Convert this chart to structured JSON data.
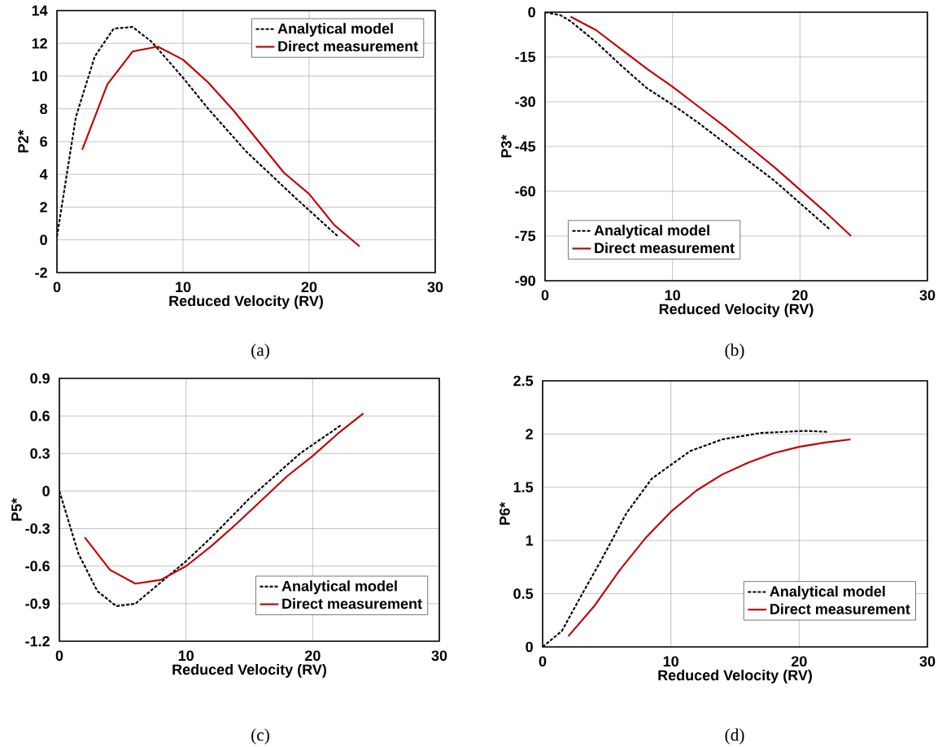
{
  "chart_data": [
    {
      "type": "line",
      "xlabel": "Reduced Velocity (RV)",
      "ylabel": "P2*",
      "annotations": [
        "(a)"
      ],
      "xlim": [
        0,
        30
      ],
      "xticks": [
        0,
        10,
        20,
        30
      ],
      "ylim": [
        -2,
        14
      ],
      "yticks": [
        -2,
        0,
        2,
        4,
        6,
        8,
        10,
        12,
        14
      ],
      "grid": true,
      "legend": "top right",
      "series": [
        {
          "name": "Analytical model",
          "color": "#000000",
          "line_style": "dashed",
          "x": [
            0,
            1.5,
            3,
            4.5,
            6,
            7.5,
            10,
            12,
            15,
            19,
            22.3
          ],
          "values": [
            0.2,
            7.5,
            11.2,
            12.9,
            13.0,
            12.1,
            9.9,
            8.0,
            5.4,
            2.5,
            0.2
          ]
        },
        {
          "name": "Direct measurement",
          "color": "#c00000",
          "line_style": "solid",
          "x": [
            2,
            4,
            6,
            8,
            10,
            12,
            14,
            16,
            18,
            20,
            22,
            24
          ],
          "values": [
            5.5,
            9.5,
            11.5,
            11.8,
            11.0,
            9.6,
            7.9,
            6.0,
            4.1,
            2.8,
            0.9,
            -0.4
          ]
        }
      ]
    },
    {
      "type": "line",
      "xlabel": "Reduced Velocity (RV)",
      "ylabel": "P3*",
      "annotations": [
        "(b)"
      ],
      "xlim": [
        0,
        30
      ],
      "xticks": [
        0,
        10,
        20,
        30
      ],
      "ylim": [
        -90,
        0
      ],
      "yticks": [
        -90,
        -75,
        -60,
        -45,
        -30,
        -15,
        0
      ],
      "grid": true,
      "legend": "bottom left",
      "series": [
        {
          "name": "Analytical model",
          "color": "#000000",
          "line_style": "dashed",
          "x": [
            0,
            1.2,
            2,
            4,
            6,
            8,
            10,
            12,
            14,
            16,
            18,
            20,
            22.4
          ],
          "values": [
            0,
            -1,
            -3,
            -10,
            -18,
            -25.5,
            -31,
            -37,
            -43.5,
            -50,
            -56.5,
            -64,
            -73
          ]
        },
        {
          "name": "Direct measurement",
          "color": "#c00000",
          "line_style": "solid",
          "x": [
            2,
            4,
            6,
            8,
            10,
            12,
            14,
            16,
            18,
            20,
            22,
            24
          ],
          "values": [
            -1.5,
            -6,
            -12.5,
            -19,
            -25,
            -31.5,
            -38,
            -45,
            -52,
            -59.5,
            -67,
            -75
          ]
        }
      ]
    },
    {
      "type": "line",
      "xlabel": "Reduced Velocity (RV)",
      "ylabel": "P5*",
      "annotations": [
        "(c)"
      ],
      "xlim": [
        0,
        30
      ],
      "xticks": [
        0,
        10,
        20,
        30
      ],
      "ylim": [
        -1.2,
        0.9
      ],
      "yticks": [
        -1.2,
        -0.9,
        -0.6,
        -0.3,
        0,
        0.3,
        0.6,
        0.9
      ],
      "grid": true,
      "legend": "bottom right",
      "series": [
        {
          "name": "Analytical model",
          "color": "#000000",
          "line_style": "dashed",
          "x": [
            0,
            1.5,
            3,
            4.5,
            6,
            8,
            10,
            12,
            15,
            19,
            22.3
          ],
          "values": [
            0,
            -0.5,
            -0.8,
            -0.92,
            -0.9,
            -0.73,
            -0.56,
            -0.37,
            -0.06,
            0.3,
            0.53
          ]
        },
        {
          "name": "Direct measurement",
          "color": "#c00000",
          "line_style": "solid",
          "x": [
            2,
            4,
            6,
            8,
            10,
            12,
            14,
            16,
            18,
            20,
            22,
            24
          ],
          "values": [
            -0.37,
            -0.63,
            -0.74,
            -0.71,
            -0.6,
            -0.44,
            -0.26,
            -0.07,
            0.12,
            0.28,
            0.46,
            0.62
          ]
        }
      ]
    },
    {
      "type": "line",
      "xlabel": "Reduced Velocity (RV)",
      "ylabel": "P6*",
      "annotations": [
        "(d)"
      ],
      "xlim": [
        0,
        30
      ],
      "xticks": [
        0,
        10,
        20,
        30
      ],
      "ylim": [
        0,
        2.5
      ],
      "yticks": [
        0,
        0.5,
        1,
        1.5,
        2,
        2.5
      ],
      "grid": true,
      "legend": "bottom right",
      "series": [
        {
          "name": "Analytical model",
          "color": "#000000",
          "line_style": "dashed",
          "x": [
            0,
            1.5,
            3,
            4.5,
            6.5,
            8.5,
            11.5,
            14,
            17,
            20.5,
            22.3
          ],
          "values": [
            0,
            0.15,
            0.48,
            0.8,
            1.25,
            1.58,
            1.84,
            1.95,
            2.01,
            2.03,
            2.02
          ]
        },
        {
          "name": "Direct measurement",
          "color": "#c00000",
          "line_style": "solid",
          "x": [
            2,
            4,
            6,
            8,
            10,
            12,
            14,
            16,
            18,
            20,
            22,
            24
          ],
          "values": [
            0.1,
            0.38,
            0.72,
            1.02,
            1.27,
            1.47,
            1.62,
            1.73,
            1.82,
            1.88,
            1.92,
            1.95
          ]
        }
      ]
    }
  ]
}
